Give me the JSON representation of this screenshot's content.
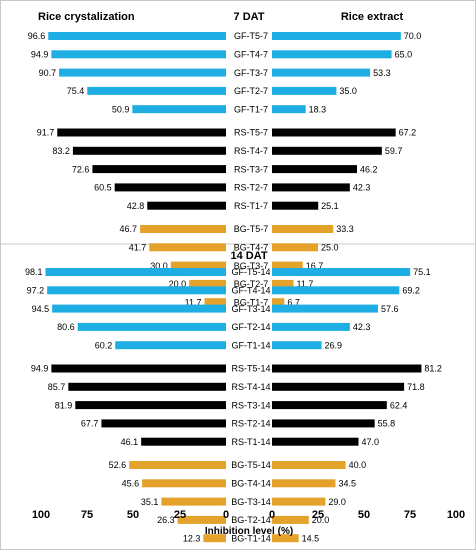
{
  "chart_data": {
    "type": "bar",
    "orientation": "horizontal-diverging",
    "headers": {
      "left": "Rice crystalization",
      "right": "Rice extract"
    },
    "xlabel": "Inhibition level (%)",
    "ticks": {
      "left": [
        100,
        75,
        50,
        25,
        0
      ],
      "right": [
        0,
        25,
        50,
        75,
        100
      ]
    },
    "xlim": [
      0,
      100
    ],
    "group_colors": {
      "GF": "#1eaee4",
      "RS": "#000000",
      "BG": "#e4a22a"
    },
    "panels": [
      {
        "title": "7 DAT",
        "rows": [
          {
            "label": "GF-T5-7",
            "group": "GF",
            "left": 96.6,
            "right": 70.0,
            "left_label": "96.6",
            "right_label": "70.0"
          },
          {
            "label": "GF-T4-7",
            "group": "GF",
            "left": 94.9,
            "right": 65.0,
            "left_label": "94.9",
            "right_label": "65.0"
          },
          {
            "label": "GF-T3-7",
            "group": "GF",
            "left": 90.7,
            "right": 53.3,
            "left_label": "90.7",
            "right_label": "53.3"
          },
          {
            "label": "GF-T2-7",
            "group": "GF",
            "left": 75.4,
            "right": 35.0,
            "left_label": "75.4",
            "right_label": "35.0"
          },
          {
            "label": "GF-T1-7",
            "group": "GF",
            "left": 50.9,
            "right": 18.3,
            "left_label": "50.9",
            "right_label": "18.3"
          },
          {
            "label": "RS-T5-7",
            "group": "RS",
            "left": 91.7,
            "right": 67.2,
            "left_label": "91.7",
            "right_label": "67.2"
          },
          {
            "label": "RS-T4-7",
            "group": "RS",
            "left": 83.2,
            "right": 59.7,
            "left_label": "83.2",
            "right_label": "59.7"
          },
          {
            "label": "RS-T3-7",
            "group": "RS",
            "left": 72.6,
            "right": 46.2,
            "left_label": "72.6",
            "right_label": "46.2"
          },
          {
            "label": "RS-T2-7",
            "group": "RS",
            "left": 60.5,
            "right": 42.3,
            "left_label": "60.5",
            "right_label": "42.3"
          },
          {
            "label": "RS-T1-7",
            "group": "RS",
            "left": 42.8,
            "right": 25.1,
            "left_label": "42.8",
            "right_label": "25.1"
          },
          {
            "label": "BG-T5-7",
            "group": "BG",
            "left": 46.7,
            "right": 33.3,
            "left_label": "46.7",
            "right_label": "33.3"
          },
          {
            "label": "BG-T4-7",
            "group": "BG",
            "left": 41.7,
            "right": 25.0,
            "left_label": "41.7",
            "right_label": "25.0"
          },
          {
            "label": "BG-T3-7",
            "group": "BG",
            "left": 30.0,
            "right": 16.7,
            "left_label": "30.0",
            "right_label": "16.7"
          },
          {
            "label": "BG-T2-7",
            "group": "BG",
            "left": 20.0,
            "right": 11.7,
            "left_label": "20.0",
            "right_label": "11.7"
          },
          {
            "label": "BG-T1-7",
            "group": "BG",
            "left": 11.7,
            "right": 6.7,
            "left_label": "11.7",
            "right_label": "6.7"
          }
        ]
      },
      {
        "title": "14 DAT",
        "rows": [
          {
            "label": "GF-T5-14",
            "group": "GF",
            "left": 98.1,
            "right": 75.1,
            "left_label": "98.1",
            "right_label": "75.1"
          },
          {
            "label": "GF-T4-14",
            "group": "GF",
            "left": 97.2,
            "right": 69.2,
            "left_label": "97.2",
            "right_label": "69.2"
          },
          {
            "label": "GF-T3-14",
            "group": "GF",
            "left": 94.5,
            "right": 57.6,
            "left_label": "94.5",
            "right_label": "57.6"
          },
          {
            "label": "GF-T2-14",
            "group": "GF",
            "left": 80.6,
            "right": 42.3,
            "left_label": "80.6",
            "right_label": "42.3"
          },
          {
            "label": "GF-T1-14",
            "group": "GF",
            "left": 60.2,
            "right": 26.9,
            "left_label": "60.2",
            "right_label": "26.9"
          },
          {
            "label": "RS-T5-14",
            "group": "RS",
            "left": 94.9,
            "right": 81.2,
            "left_label": "94.9",
            "right_label": "81.2"
          },
          {
            "label": "RS-T4-14",
            "group": "RS",
            "left": 85.7,
            "right": 71.8,
            "left_label": "85.7",
            "right_label": "71.8"
          },
          {
            "label": "RS-T3-14",
            "group": "RS",
            "left": 81.9,
            "right": 62.4,
            "left_label": "81.9",
            "right_label": "62.4"
          },
          {
            "label": "RS-T2-14",
            "group": "RS",
            "left": 67.7,
            "right": 55.8,
            "left_label": "67.7",
            "right_label": "55.8"
          },
          {
            "label": "RS-T1-14",
            "group": "RS",
            "left": 46.1,
            "right": 47.0,
            "left_label": "46.1",
            "right_label": "47.0"
          },
          {
            "label": "BG-T5-14",
            "group": "BG",
            "left": 52.6,
            "right": 40.0,
            "left_label": "52.6",
            "right_label": "40.0"
          },
          {
            "label": "BG-T4-14",
            "group": "BG",
            "left": 45.6,
            "right": 34.5,
            "left_label": "45.6",
            "right_label": "34.5"
          },
          {
            "label": "BG-T3-14",
            "group": "BG",
            "left": 35.1,
            "right": 29.0,
            "left_label": "35.1",
            "right_label": "29.0"
          },
          {
            "label": "BG-T2-14",
            "group": "BG",
            "left": 26.3,
            "right": 20.0,
            "left_label": "26.3",
            "right_label": "20.0"
          },
          {
            "label": "BG-T1-14",
            "group": "BG",
            "left": 12.3,
            "right": 14.5,
            "left_label": "12.3",
            "right_label": "14.5"
          }
        ]
      }
    ]
  }
}
